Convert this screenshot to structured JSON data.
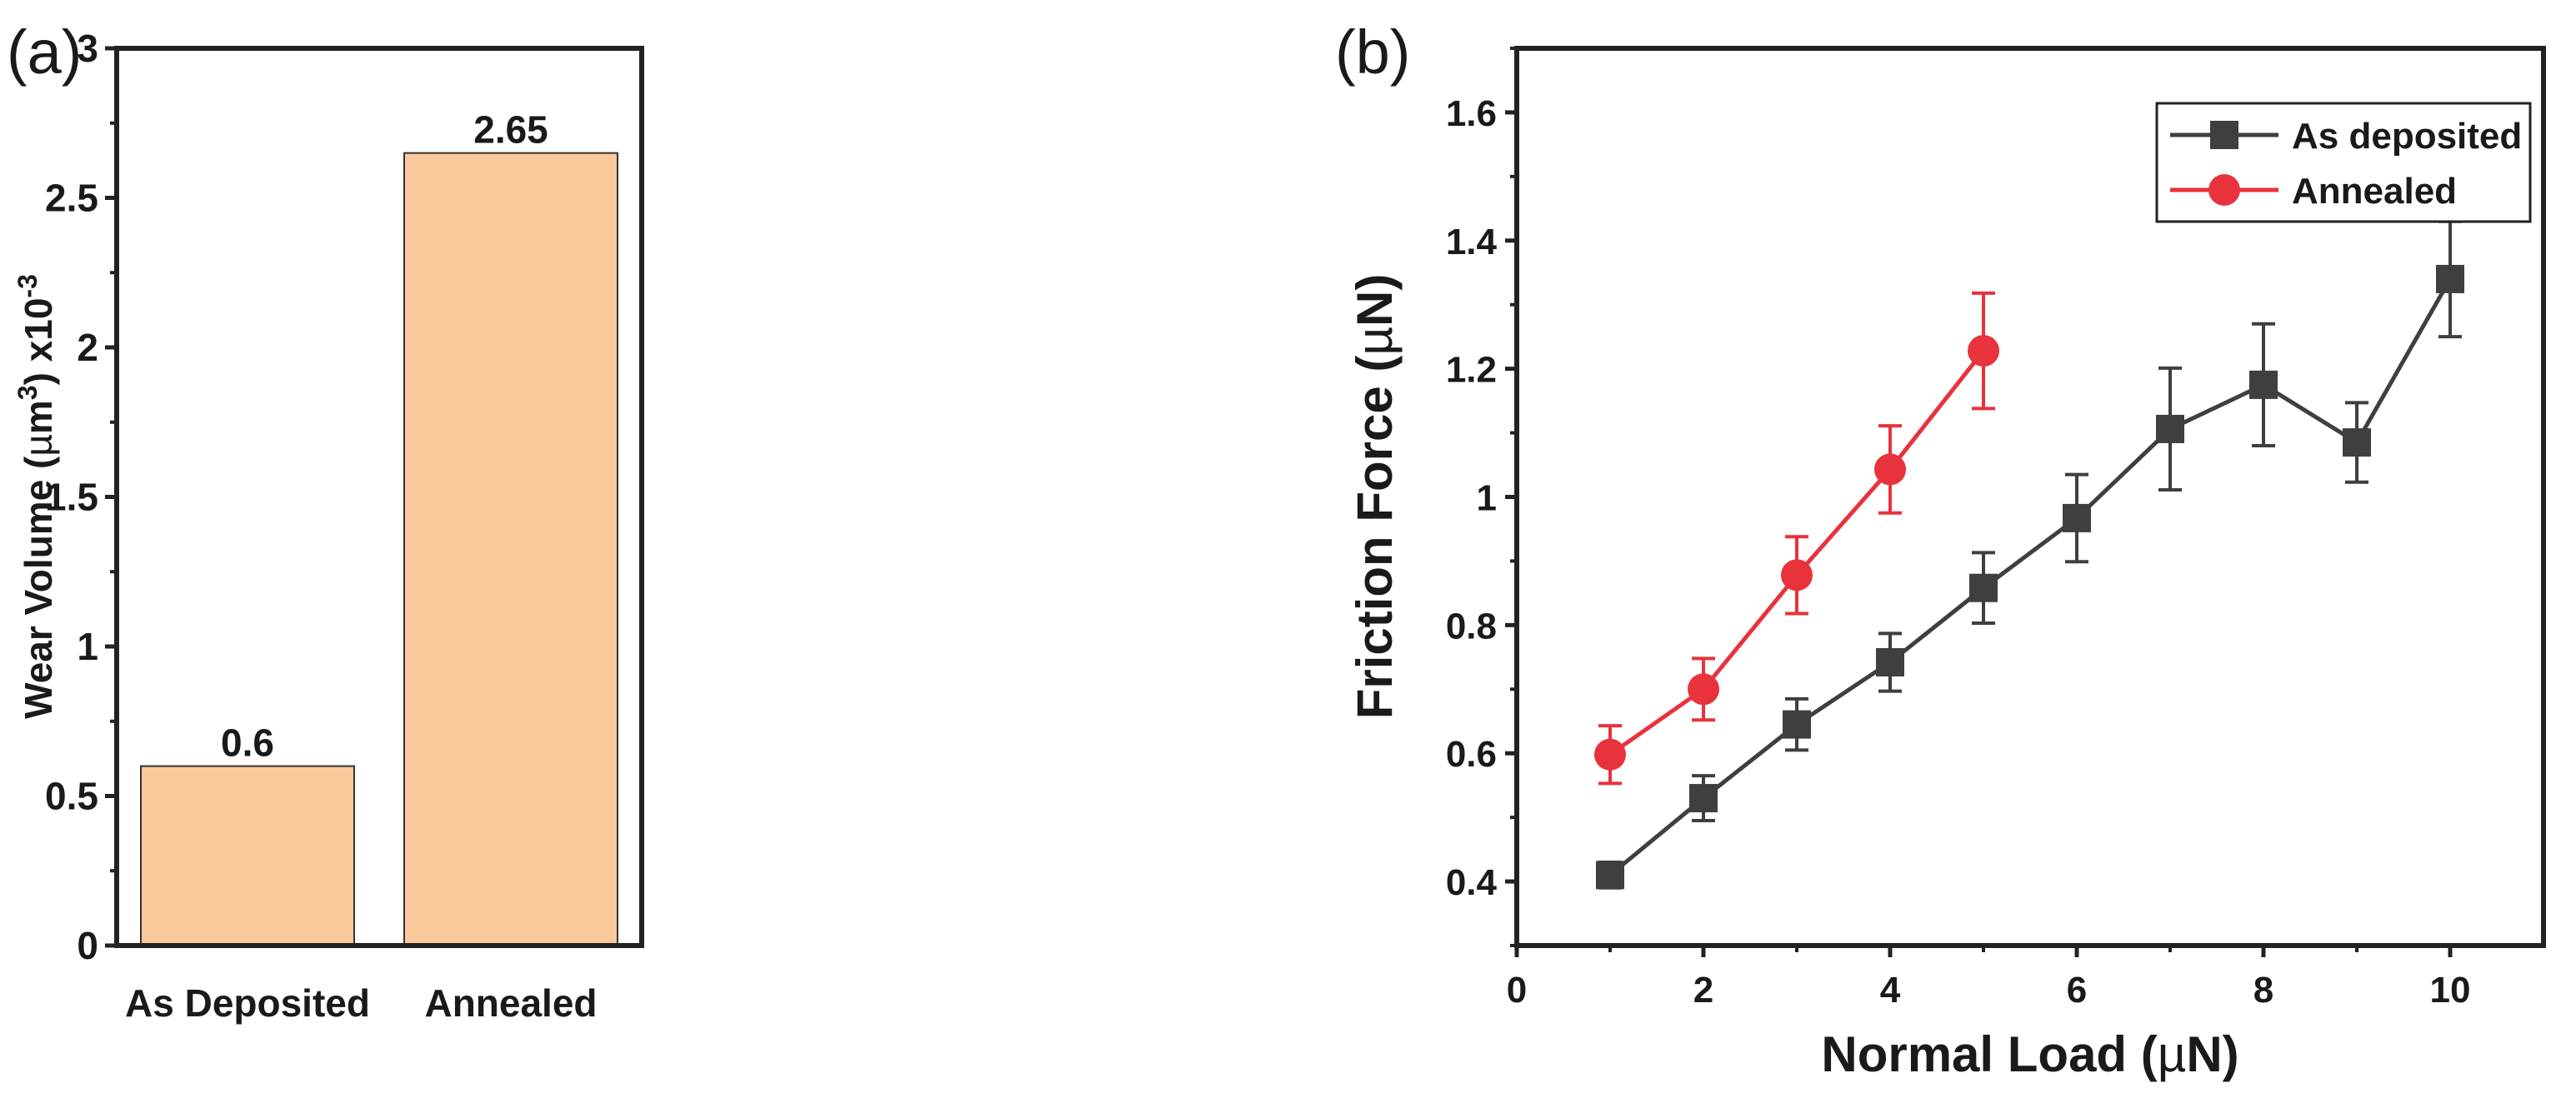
{
  "panels": [
    {
      "panel_label": "(a)",
      "chart_data": {
        "type": "bar",
        "title": "",
        "xlabel": "",
        "ylabel_prefix": "Wear Volume (",
        "ylabel_mu": "µ",
        "ylabel_unit": "m",
        "ylabel_sup": "3",
        "ylabel_suffix": ") x10",
        "ylabel_exp": "-3",
        "ylim": [
          0,
          3
        ],
        "yticks": [
          0,
          0.5,
          1,
          1.5,
          2,
          2.5,
          3
        ],
        "ytick_labels": [
          "0",
          "0.5",
          "1",
          "1.5",
          "2",
          "2.5",
          "3"
        ],
        "categories": [
          "As Deposited",
          "Annealed"
        ],
        "values": [
          0.6,
          2.65
        ],
        "value_labels": [
          "0.6",
          "2.65"
        ],
        "bar_color": "#f9c89b",
        "grid": false
      }
    },
    {
      "panel_label": "(b)",
      "chart_data": {
        "type": "line",
        "title": "",
        "xlabel_prefix": "Normal Load (",
        "xlabel_mu": "µ",
        "xlabel_suffix": "N)",
        "ylabel_prefix": "Friction Force (",
        "ylabel_mu": "µ",
        "ylabel_suffix": "N)",
        "xlim": [
          0,
          11
        ],
        "ylim": [
          0.3,
          1.7
        ],
        "xticks": [
          0,
          2,
          4,
          6,
          8,
          10
        ],
        "xtick_labels": [
          "0",
          "2",
          "4",
          "6",
          "8",
          "10"
        ],
        "yticks": [
          0.4,
          0.6,
          0.8,
          1.0,
          1.2,
          1.4,
          1.6
        ],
        "ytick_labels": [
          "0.4",
          "0.6",
          "0.8",
          "1",
          "1.2",
          "1.4",
          "1.6"
        ],
        "legend_position": "top-right",
        "grid": false,
        "series": [
          {
            "name": "As deposited",
            "marker": "square",
            "color": "#3f3f3f",
            "x": [
              1,
              2,
              3,
              4,
              5,
              6,
              7,
              8,
              9,
              10
            ],
            "y": [
              0.41,
              0.53,
              0.645,
              0.742,
              0.858,
              0.967,
              1.106,
              1.175,
              1.085,
              1.34
            ],
            "err": [
              0.02,
              0.035,
              0.04,
              0.045,
              0.055,
              0.068,
              0.095,
              0.095,
              0.062,
              0.09
            ]
          },
          {
            "name": "Annealed",
            "marker": "circle",
            "color": "#e8323c",
            "x": [
              1,
              2,
              3,
              4,
              5
            ],
            "y": [
              0.598,
              0.7,
              0.878,
              1.043,
              1.228
            ],
            "err": [
              0.045,
              0.048,
              0.06,
              0.068,
              0.09
            ]
          }
        ]
      }
    }
  ]
}
